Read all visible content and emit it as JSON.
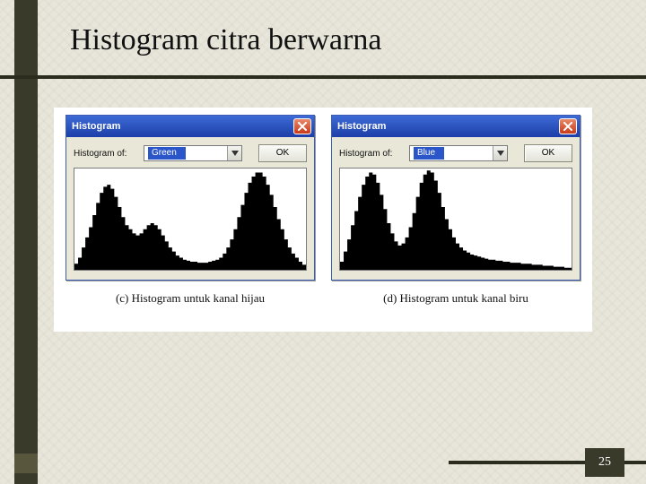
{
  "slide": {
    "title": "Histogram citra berwarna",
    "page_number": "25"
  },
  "captions": {
    "left": "(c)  Histogram untuk kanal hijau",
    "right": "(d)  Histogram untuk kanal biru"
  },
  "dialog_common": {
    "title": "Histogram",
    "field_label": "Histogram of:",
    "ok_label": "OK"
  },
  "colors": {
    "slide_bg": "#e8e6db",
    "accent_dark": "#3a3a2a",
    "titlebar_top": "#3e6bd6",
    "titlebar_bottom": "#1c3ea8",
    "close_top": "#e88a6a",
    "close_bottom": "#c83a1a",
    "dialog_body": "#e9e7d8",
    "selection_bg": "#2b56c9",
    "histogram_fill": "#000000",
    "histogram_bg": "#ffffff"
  },
  "panels": [
    {
      "id": "green",
      "selected_channel": "Green",
      "histogram": {
        "type": "histogram",
        "xlim": [
          0,
          255
        ],
        "ylim": [
          0,
          100
        ],
        "fill_color": "#000000",
        "bg_color": "#ffffff",
        "values": [
          6,
          12,
          22,
          32,
          42,
          54,
          66,
          76,
          82,
          84,
          80,
          72,
          62,
          52,
          44,
          40,
          36,
          34,
          36,
          40,
          44,
          46,
          44,
          40,
          34,
          28,
          22,
          18,
          14,
          12,
          10,
          9,
          8,
          8,
          7,
          7,
          7,
          8,
          9,
          10,
          12,
          16,
          22,
          30,
          40,
          52,
          64,
          76,
          86,
          92,
          96,
          96,
          92,
          84,
          74,
          62,
          50,
          40,
          30,
          22,
          16,
          12,
          8,
          5
        ]
      }
    },
    {
      "id": "blue",
      "selected_channel": "Blue",
      "histogram": {
        "type": "histogram",
        "xlim": [
          0,
          255
        ],
        "ylim": [
          0,
          100
        ],
        "fill_color": "#000000",
        "bg_color": "#ffffff",
        "values": [
          8,
          18,
          30,
          44,
          58,
          72,
          84,
          92,
          96,
          94,
          86,
          74,
          60,
          46,
          36,
          28,
          24,
          26,
          32,
          42,
          56,
          72,
          86,
          94,
          98,
          96,
          88,
          76,
          62,
          50,
          40,
          32,
          26,
          22,
          19,
          17,
          15,
          14,
          13,
          12,
          11,
          10,
          10,
          9,
          9,
          8,
          8,
          7,
          7,
          7,
          6,
          6,
          6,
          5,
          5,
          5,
          4,
          4,
          4,
          3,
          3,
          3,
          2,
          2
        ]
      }
    }
  ]
}
